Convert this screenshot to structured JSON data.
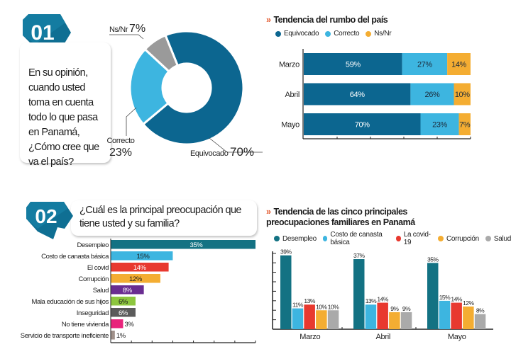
{
  "section1": {
    "number": "01",
    "question": "En su opinión, cuando usted toma en cuenta todo lo que pasa en Panamá, ¿Cómo cree que va el país?"
  },
  "section2": {
    "number": "02",
    "question": "¿Cuál es la principal preocupación que tiene usted y su familia?"
  },
  "colors": {
    "badge": "#0f6f93",
    "equivocado": "#0c6690",
    "correcto": "#3db5e0",
    "nsnr_donut": "#9a9a9a",
    "nsnr_bar": "#f4ad32",
    "accent_chevron": "#e2572b"
  },
  "chart_data": [
    {
      "id": "rumbo-donut",
      "type": "pie",
      "title": "",
      "slices": [
        {
          "label": "Equivocado",
          "value": 70,
          "display": "70%",
          "color": "#0c6690"
        },
        {
          "label": "Correcto",
          "value": 23,
          "display": "23%",
          "color": "#3db5e0"
        },
        {
          "label": "Ns/Nr",
          "value": 7,
          "display": "7%",
          "color": "#9a9a9a"
        }
      ]
    },
    {
      "id": "tendencia-rumbo",
      "type": "bar",
      "orientation": "horizontal",
      "stacked": true,
      "title": "Tendencia del rumbo del país",
      "categories": [
        "Marzo",
        "Abril",
        "Mayo"
      ],
      "series": [
        {
          "name": "Equivocado",
          "values": [
            59,
            64,
            70
          ],
          "color": "#0c6690"
        },
        {
          "name": "Correcto",
          "values": [
            27,
            26,
            23
          ],
          "color": "#3db5e0"
        },
        {
          "name": "Ns/Nr",
          "values": [
            14,
            10,
            7
          ],
          "color": "#f4ad32"
        }
      ],
      "xlim": [
        0,
        100
      ],
      "legend": "top-left"
    },
    {
      "id": "principal-preocupacion",
      "type": "bar",
      "orientation": "horizontal",
      "title": "¿Cuál es la principal preocupación que tiene usted y su familia?",
      "categories": [
        "Desempleo",
        "Costo de canasta básica",
        "El covid",
        "Corrupción",
        "Salud",
        "Mala educación de sus hijos",
        "Inseguridad",
        "No tiene vivienda",
        "Servicio de transporte ineficiente"
      ],
      "values": [
        35,
        15,
        14,
        12,
        8,
        6,
        6,
        3,
        1
      ],
      "labels": [
        "35%",
        "15%",
        "14%",
        "12%",
        "8%",
        "6%",
        "6%",
        "3%",
        "1%"
      ],
      "colors": [
        "#137283",
        "#3db5e0",
        "#e8392f",
        "#f4ad32",
        "#6a2d91",
        "#8dc63f",
        "#5b5b5b",
        "#e8237b",
        "#a0918a"
      ],
      "xlim": [
        0,
        35
      ]
    },
    {
      "id": "tendencia-preocupaciones",
      "type": "bar",
      "orientation": "vertical",
      "title": "Tendencia de las cinco principales preocupaciones familiares en Panamá",
      "categories": [
        "Marzo",
        "Abril",
        "Mayo"
      ],
      "series": [
        {
          "name": "Desempleo",
          "values": [
            39,
            37,
            35
          ],
          "color": "#137283"
        },
        {
          "name": "Costo de canasta básica",
          "values": [
            11,
            13,
            15
          ],
          "color": "#3db5e0"
        },
        {
          "name": "La covid-19",
          "values": [
            13,
            14,
            14
          ],
          "color": "#e8392f"
        },
        {
          "name": "Corrupción",
          "values": [
            10,
            9,
            12
          ],
          "color": "#f4ad32"
        },
        {
          "name": "Salud",
          "values": [
            10,
            9,
            8
          ],
          "color": "#aaaaaa"
        }
      ],
      "ylim": [
        0,
        40
      ],
      "legend": "top-left"
    }
  ]
}
